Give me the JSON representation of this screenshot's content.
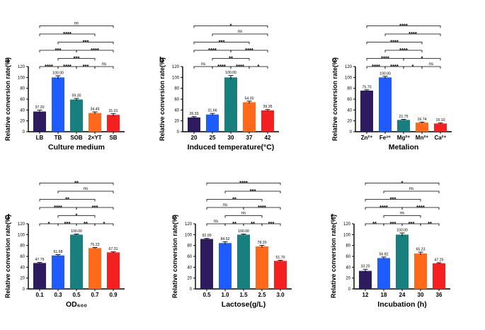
{
  "chart_data": [
    {
      "type": "bar",
      "panel_label": "a",
      "title": "",
      "xlabel": "Culture medium",
      "ylabel": "Relative conversion rate(%)",
      "ylim": [
        0,
        120
      ],
      "yticks": [
        0,
        20,
        40,
        60,
        80,
        100,
        120
      ],
      "categories": [
        "LB",
        "TB",
        "SOB",
        "2×YT",
        "SB"
      ],
      "values": [
        37.2,
        100.0,
        59.3,
        34.49,
        31.01
      ],
      "value_labels": [
        "37.20",
        "100.00",
        "59.30",
        "34.49",
        "31.01"
      ],
      "errors": [
        2.5,
        3.0,
        2.0,
        2.0,
        2.5
      ],
      "colors": [
        "#2e1a5e",
        "#1f5cff",
        "#17807e",
        "#ff6a1a",
        "#f41f1f"
      ],
      "comparisons": [
        {
          "from": 0,
          "to": 1,
          "label": "****"
        },
        {
          "from": 1,
          "to": 2,
          "label": "****"
        },
        {
          "from": 2,
          "to": 3,
          "label": "***"
        },
        {
          "from": 3,
          "to": 4,
          "label": "ns"
        },
        {
          "from": 1,
          "to": 3,
          "label": "***"
        },
        {
          "from": 0,
          "to": 2,
          "label": "***"
        },
        {
          "from": 1,
          "to": 4,
          "label": "***"
        },
        {
          "from": 0,
          "to": 3,
          "label": "****"
        },
        {
          "from": 2,
          "to": 4,
          "label": "****"
        },
        {
          "from": 0,
          "to": 4,
          "label": "ns"
        }
      ]
    },
    {
      "type": "bar",
      "panel_label": "b",
      "title": "",
      "xlabel": "Induced temperature(°C)",
      "ylabel": "Relative conversion rate(%)",
      "ylim": [
        0,
        120
      ],
      "yticks": [
        0,
        20,
        40,
        60,
        80,
        100,
        120
      ],
      "categories": [
        "20",
        "25",
        "30",
        "37",
        "42"
      ],
      "values": [
        26.33,
        31.66,
        100.0,
        54.3,
        39.35
      ],
      "value_labels": [
        "26.33",
        "31.66",
        "100.00",
        "54.30",
        "39.35"
      ],
      "errors": [
        1.5,
        2.0,
        3.5,
        2.0,
        1.5
      ],
      "colors": [
        "#2e1a5e",
        "#1f5cff",
        "#17807e",
        "#ff6a1a",
        "#f41f1f"
      ],
      "comparisons": [
        {
          "from": 0,
          "to": 1,
          "label": "ns"
        },
        {
          "from": 1,
          "to": 2,
          "label": "****"
        },
        {
          "from": 2,
          "to": 3,
          "label": "****"
        },
        {
          "from": 3,
          "to": 4,
          "label": "*"
        },
        {
          "from": 1,
          "to": 3,
          "label": "**"
        },
        {
          "from": 0,
          "to": 2,
          "label": "****"
        },
        {
          "from": 2,
          "to": 4,
          "label": "****"
        },
        {
          "from": 0,
          "to": 3,
          "label": "***"
        },
        {
          "from": 1,
          "to": 4,
          "label": "ns"
        },
        {
          "from": 0,
          "to": 4,
          "label": "*"
        }
      ]
    },
    {
      "type": "bar",
      "panel_label": "c",
      "title": "",
      "xlabel": "Metalion",
      "ylabel": "Relative conversion rate(%)",
      "ylim": [
        0,
        120
      ],
      "yticks": [
        0,
        20,
        40,
        60,
        80,
        100,
        120
      ],
      "categories": [
        "Zn²⁺",
        "Fe³⁺",
        "Mg²⁺",
        "Mn²⁺",
        "Ca²⁺"
      ],
      "values": [
        75.7,
        100.0,
        21.75,
        16.74,
        15.1
      ],
      "value_labels": [
        "75.70",
        "100.00",
        "21.75",
        "16.74",
        "15.10"
      ],
      "errors": [
        1.5,
        2.0,
        1.0,
        1.0,
        1.0
      ],
      "colors": [
        "#2e1a5e",
        "#1f5cff",
        "#17807e",
        "#ff6a1a",
        "#f41f1f"
      ],
      "comparisons": [
        {
          "from": 0,
          "to": 1,
          "label": "****"
        },
        {
          "from": 1,
          "to": 2,
          "label": "****"
        },
        {
          "from": 2,
          "to": 3,
          "label": "*"
        },
        {
          "from": 3,
          "to": 4,
          "label": "ns"
        },
        {
          "from": 0,
          "to": 2,
          "label": "****"
        },
        {
          "from": 2,
          "to": 4,
          "label": "*"
        },
        {
          "from": 1,
          "to": 3,
          "label": "****"
        },
        {
          "from": 0,
          "to": 3,
          "label": "****"
        },
        {
          "from": 1,
          "to": 4,
          "label": "****"
        },
        {
          "from": 0,
          "to": 4,
          "label": "****"
        }
      ]
    },
    {
      "type": "bar",
      "panel_label": "d",
      "title": "",
      "xlabel": "OD₆₀₀",
      "ylabel": "Relative conversion rate(%)",
      "ylim": [
        0,
        120
      ],
      "yticks": [
        0,
        20,
        40,
        60,
        80,
        100,
        120
      ],
      "categories": [
        "0.1",
        "0.3",
        "0.5",
        "0.7",
        "0.9"
      ],
      "values": [
        47.75,
        61.68,
        100.0,
        75.23,
        67.31
      ],
      "value_labels": [
        "47.75",
        "61.68",
        "100.00",
        "75.23",
        "67.31"
      ],
      "errors": [
        1.0,
        1.5,
        1.0,
        1.0,
        1.0
      ],
      "colors": [
        "#2e1a5e",
        "#1f5cff",
        "#17807e",
        "#ff6a1a",
        "#f41f1f"
      ],
      "comparisons": [
        {
          "from": 0,
          "to": 1,
          "label": "*"
        },
        {
          "from": 1,
          "to": 2,
          "label": "***"
        },
        {
          "from": 2,
          "to": 3,
          "label": "**"
        },
        {
          "from": 3,
          "to": 4,
          "label": "*"
        },
        {
          "from": 1,
          "to": 3,
          "label": "*"
        },
        {
          "from": 0,
          "to": 2,
          "label": "****"
        },
        {
          "from": 2,
          "to": 4,
          "label": "***"
        },
        {
          "from": 0,
          "to": 3,
          "label": "**"
        },
        {
          "from": 1,
          "to": 4,
          "label": "ns"
        },
        {
          "from": 0,
          "to": 4,
          "label": "**"
        }
      ]
    },
    {
      "type": "bar",
      "panel_label": "e",
      "title": "",
      "xlabel": "Lactose(g/L)",
      "ylabel": "Relative conversion rate(%)",
      "ylim": [
        0,
        120
      ],
      "yticks": [
        0,
        20,
        40,
        60,
        80,
        100,
        120
      ],
      "categories": [
        "0.5",
        "1.0",
        "1.5",
        "2.5",
        "3.0"
      ],
      "values": [
        92.0,
        84.52,
        100.0,
        78.2,
        51.7
      ],
      "value_labels": [
        "92.00",
        "84.52",
        "100.00",
        "78.20",
        "51.70"
      ],
      "errors": [
        1.0,
        2.5,
        1.0,
        2.0,
        1.0
      ],
      "colors": [
        "#2e1a5e",
        "#1f5cff",
        "#17807e",
        "#ff6a1a",
        "#f41f1f"
      ],
      "comparisons": [
        {
          "from": 0,
          "to": 1,
          "label": "ns"
        },
        {
          "from": 1,
          "to": 2,
          "label": "**"
        },
        {
          "from": 2,
          "to": 3,
          "label": "**"
        },
        {
          "from": 3,
          "to": 4,
          "label": "***"
        },
        {
          "from": 1,
          "to": 3,
          "label": "ns"
        },
        {
          "from": 0,
          "to": 2,
          "label": "ns"
        },
        {
          "from": 2,
          "to": 4,
          "label": "****"
        },
        {
          "from": 0,
          "to": 3,
          "label": "**"
        },
        {
          "from": 1,
          "to": 4,
          "label": "***"
        },
        {
          "from": 0,
          "to": 4,
          "label": "****"
        }
      ]
    },
    {
      "type": "bar",
      "panel_label": "f",
      "title": "",
      "xlabel": "Incubation (h)",
      "ylabel": "Relative conversion rate(%)",
      "ylim": [
        0,
        120
      ],
      "yticks": [
        0,
        20,
        40,
        60,
        80,
        100,
        120
      ],
      "categories": [
        "12",
        "18",
        "24",
        "30",
        "36"
      ],
      "values": [
        33.2,
        56.82,
        100.0,
        65.23,
        47.25
      ],
      "value_labels": [
        "33.20",
        "56.82",
        "100.00",
        "65.23",
        "47.25"
      ],
      "errors": [
        3.0,
        2.0,
        3.0,
        2.5,
        1.0
      ],
      "colors": [
        "#2e1a5e",
        "#1f5cff",
        "#17807e",
        "#ff6a1a",
        "#f41f1f"
      ],
      "comparisons": [
        {
          "from": 0,
          "to": 1,
          "label": "**"
        },
        {
          "from": 1,
          "to": 2,
          "label": "***"
        },
        {
          "from": 2,
          "to": 3,
          "label": "***"
        },
        {
          "from": 3,
          "to": 4,
          "label": "**"
        },
        {
          "from": 1,
          "to": 3,
          "label": "ns"
        },
        {
          "from": 0,
          "to": 2,
          "label": "****"
        },
        {
          "from": 2,
          "to": 4,
          "label": "****"
        },
        {
          "from": 0,
          "to": 3,
          "label": "***"
        },
        {
          "from": 1,
          "to": 4,
          "label": "ns"
        },
        {
          "from": 0,
          "to": 4,
          "label": "*"
        }
      ]
    }
  ]
}
